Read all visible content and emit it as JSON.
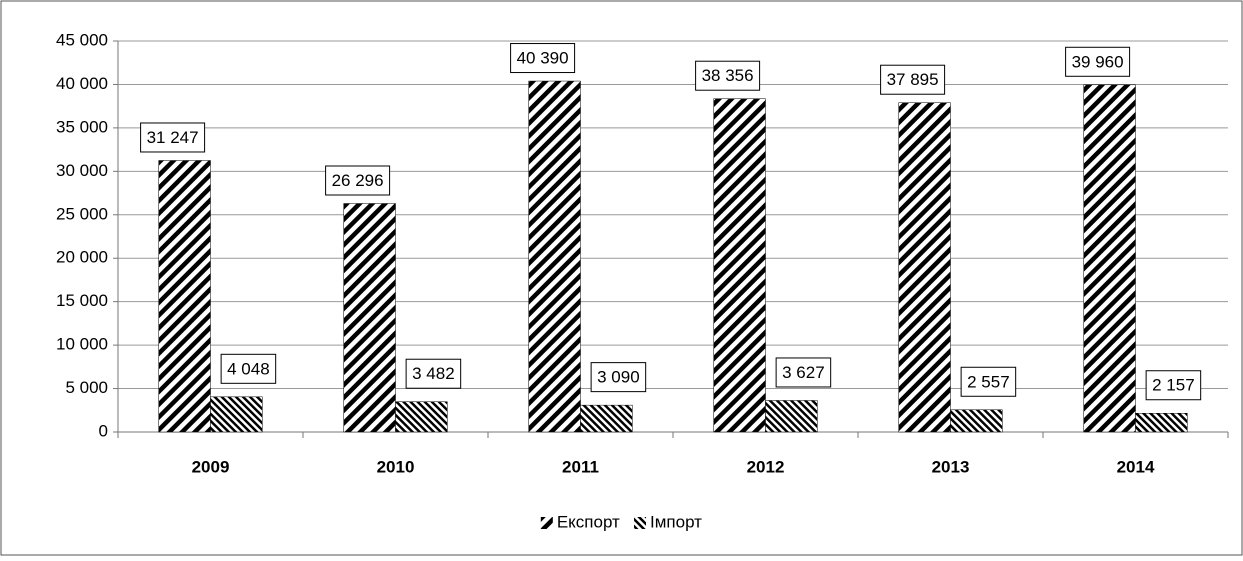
{
  "chart_data": {
    "type": "bar",
    "categories": [
      "2009",
      "2010",
      "2011",
      "2012",
      "2013",
      "2014"
    ],
    "series": [
      {
        "name": "Експорт",
        "color": "#000000",
        "pattern": "forward",
        "values": [
          31247,
          26296,
          40390,
          38356,
          37895,
          39960
        ],
        "value_labels": [
          "31 247",
          "26 296",
          "40 390",
          "38 356",
          "37 895",
          "39 960"
        ]
      },
      {
        "name": "Імпорт",
        "color": "#000000",
        "pattern": "backward",
        "values": [
          4048,
          3482,
          3090,
          3627,
          2557,
          2157
        ],
        "value_labels": [
          "4 048",
          "3 482",
          "3 090",
          "3 627",
          "2 557",
          "2 157"
        ]
      }
    ],
    "ylim": [
      0,
      45000
    ],
    "yticks": [
      0,
      {
        "value": 5000,
        "label": "5 000"
      },
      {
        "value": 10000,
        "label": "10 000"
      },
      {
        "value": 15000,
        "label": "15 000"
      },
      {
        "value": 20000,
        "label": "20 000"
      },
      {
        "value": 25000,
        "label": "25 000"
      },
      {
        "value": 30000,
        "label": "30 000"
      },
      {
        "value": 35000,
        "label": "35 000"
      },
      {
        "value": 40000,
        "label": "40 000"
      },
      {
        "value": 45000,
        "label": "45 000"
      }
    ],
    "grid": true,
    "legend": "bottom"
  }
}
